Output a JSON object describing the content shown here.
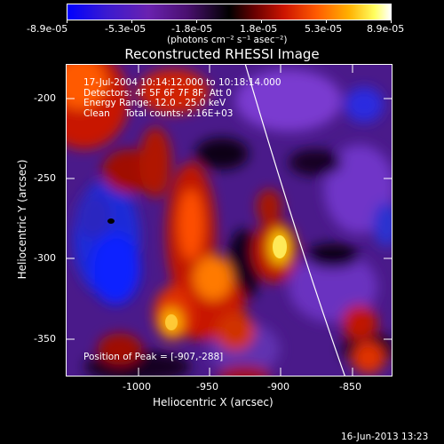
{
  "colorbar": {
    "tick_labels": [
      "-8.9e-05",
      "-5.3e-05",
      "-1.8e-05",
      "1.8e-05",
      "5.3e-05",
      "8.9e-05"
    ],
    "units": "(photons cm⁻² s⁻¹ asec⁻²)"
  },
  "plot": {
    "title": "Reconstructed RHESSI Image",
    "xlabel": "Heliocentric X (arcsec)",
    "ylabel": "Heliocentric Y (arcsec)",
    "xticks": [
      "-1000",
      "-950",
      "-900",
      "-850"
    ],
    "yticks": [
      "-200",
      "-250",
      "-300",
      "-350"
    ],
    "info": {
      "time_range": "17-Jul-2004 10:14:12.000 to 10:18:14.000",
      "detectors": "Detectors: 4F 5F 6F 7F 8F, Att 0",
      "energy": "Energy Range: 12.0 - 25.0 keV",
      "clean": "Clean     Total counts: 2.16E+03"
    },
    "peak": "Position of Peak = [-907,-288]"
  },
  "footer": {
    "timestamp": "16-Jun-2013 13:23"
  }
}
